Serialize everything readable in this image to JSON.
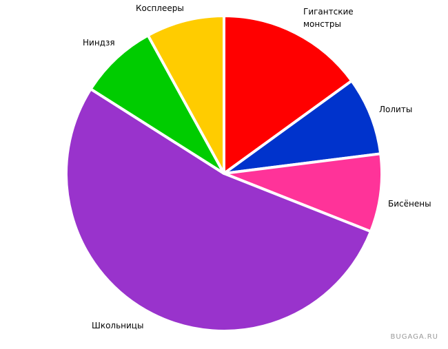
{
  "chart_data": {
    "type": "pie",
    "categories": [
      "Гигантские монстры",
      "Лолиты",
      "Бисёнены",
      "Школьницы",
      "Ниндзя",
      "Косплееры"
    ],
    "values": [
      15,
      8,
      8,
      53,
      8,
      8
    ],
    "colors": [
      "#ff0000",
      "#0033cc",
      "#ff3399",
      "#9933cc",
      "#00cc00",
      "#ffcc00"
    ],
    "watermark": "BUGAGA.RU"
  }
}
